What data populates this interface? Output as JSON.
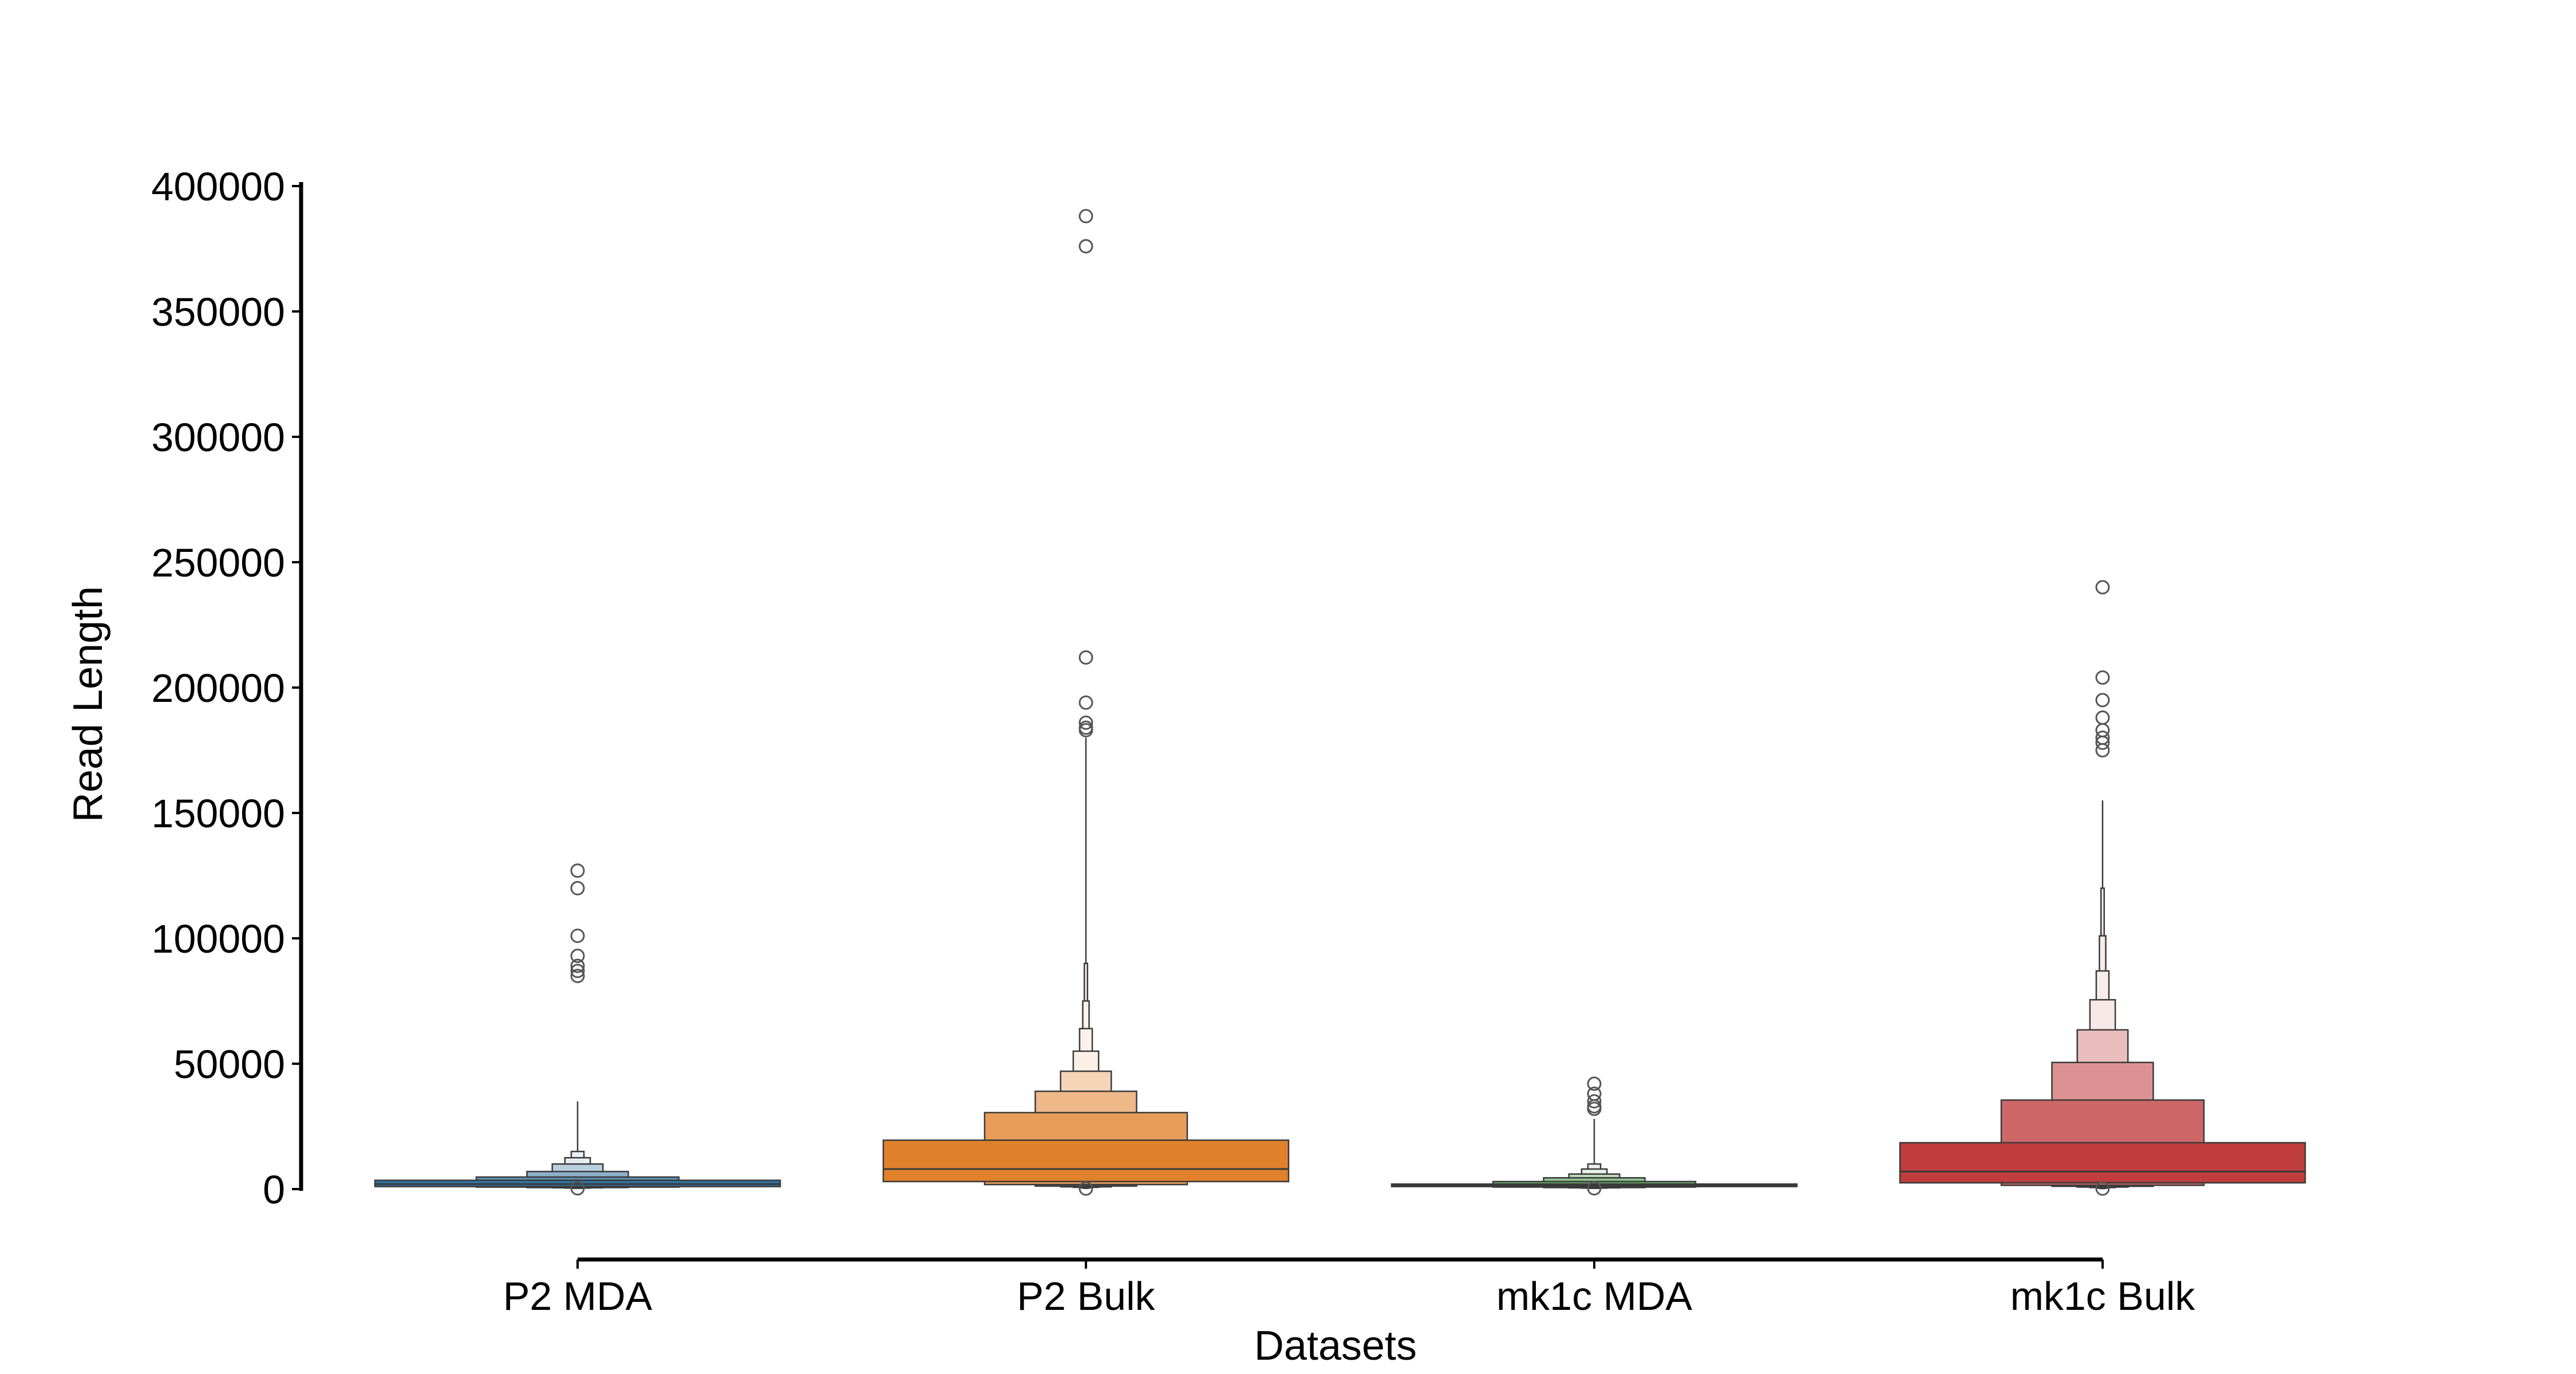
{
  "chart_data": {
    "type": "boxen",
    "title": "",
    "xlabel": "Datasets",
    "ylabel": "Read Length",
    "ylim": [
      0,
      400000
    ],
    "yticks": [
      0,
      50000,
      100000,
      150000,
      200000,
      250000,
      300000,
      350000,
      400000
    ],
    "ytick_labels": [
      "0",
      "50000",
      "100000",
      "150000",
      "200000",
      "250000",
      "300000",
      "350000",
      "400000"
    ],
    "grid": false,
    "legend": "none",
    "categories": [
      "P2 MDA",
      "P2 Bulk",
      "mk1c MDA",
      "mk1c Bulk"
    ],
    "series": [
      {
        "category": "P2 MDA",
        "color": "#3274a1",
        "median": 2000,
        "letter_values": [
          [
            1000,
            3500
          ],
          [
            800,
            4800
          ],
          [
            600,
            7000
          ],
          [
            500,
            10000
          ],
          [
            400,
            12500
          ],
          [
            300,
            15000
          ]
        ],
        "whisker": [
          200,
          35000
        ],
        "outliers": [
          127000,
          120000,
          101000,
          93000,
          89000,
          87000,
          85000,
          300
        ]
      },
      {
        "category": "P2 Bulk",
        "color": "#e1812c",
        "median": 8000,
        "letter_values": [
          [
            3000,
            19500
          ],
          [
            1800,
            30500
          ],
          [
            1200,
            39000
          ],
          [
            900,
            47000
          ],
          [
            700,
            55000
          ],
          [
            500,
            64000
          ],
          [
            400,
            75000
          ],
          [
            300,
            90000
          ]
        ],
        "whisker": [
          200,
          180000
        ],
        "outliers": [
          388000,
          376000,
          212000,
          194000,
          186000,
          184000,
          183000,
          200
        ]
      },
      {
        "category": "mk1c MDA",
        "color": "#3a923a",
        "median": 1500,
        "letter_values": [
          [
            1000,
            2000
          ],
          [
            800,
            3000
          ],
          [
            600,
            4500
          ],
          [
            500,
            6000
          ],
          [
            400,
            8000
          ],
          [
            300,
            10000
          ]
        ],
        "whisker": [
          200,
          28000
        ],
        "outliers": [
          42000,
          38000,
          35000,
          33000,
          32000,
          300
        ]
      },
      {
        "category": "mk1c Bulk",
        "color": "#c03d3e",
        "median": 7000,
        "letter_values": [
          [
            2500,
            18500
          ],
          [
            1500,
            35500
          ],
          [
            1100,
            50500
          ],
          [
            800,
            63500
          ],
          [
            600,
            75500
          ],
          [
            400,
            87000
          ],
          [
            300,
            101000
          ],
          [
            200,
            120000
          ]
        ],
        "whisker": [
          200,
          155000
        ],
        "outliers": [
          240000,
          204000,
          195000,
          188000,
          183000,
          180000,
          178000,
          175000,
          200
        ]
      }
    ]
  }
}
